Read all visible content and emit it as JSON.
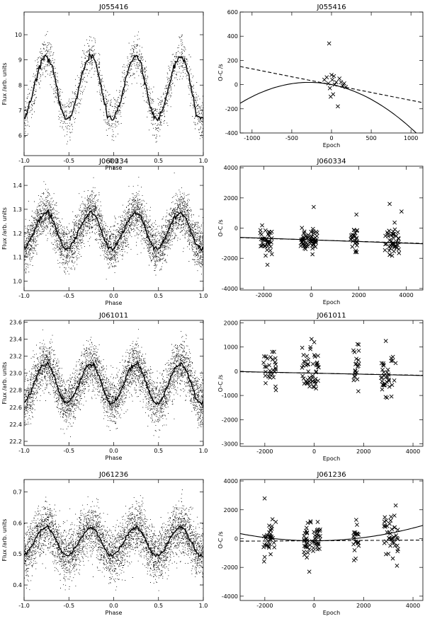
{
  "chart_data": [
    {
      "type": "scatter",
      "title": "J055416",
      "xlabel": "Phase",
      "ylabel": "Flux /arb. units",
      "xlim": [
        -1.0,
        1.0
      ],
      "ylim": [
        5.2,
        10.9
      ],
      "xticks": [
        -1.0,
        -0.5,
        0.0,
        0.5,
        1.0
      ],
      "xticklabels": [
        "-1.0",
        "-0.5",
        "0.0",
        "0.5",
        "1.0"
      ],
      "yticks": [
        6,
        7,
        8,
        9,
        10
      ],
      "yticklabels": [
        "6",
        "7",
        "8",
        "9",
        "10"
      ],
      "curve": {
        "mean": 7.9,
        "amplitude": 1.25,
        "period": 0.5,
        "peak_phase": -0.25,
        "shape": "sawtooth-rounded"
      },
      "scatter": {
        "n_points": 1800,
        "spread": 0.75
      }
    },
    {
      "type": "scatter",
      "title": "J055416",
      "xlabel": "Epoch",
      "ylabel": "O-C /s",
      "xlim": [
        -1150,
        1150
      ],
      "ylim": [
        -400,
        600
      ],
      "xticks": [
        -1000,
        -500,
        0,
        500,
        1000
      ],
      "xticklabels": [
        "-1000",
        "-500",
        "0",
        "500",
        "1000"
      ],
      "yticks": [
        -400,
        -200,
        0,
        200,
        400,
        600
      ],
      "yticklabels": [
        "-400",
        "-200",
        "0",
        "200",
        "400",
        "600"
      ],
      "points": [
        [
          -30,
          340
        ],
        [
          -90,
          40
        ],
        [
          -60,
          60
        ],
        [
          -40,
          10
        ],
        [
          -20,
          -30
        ],
        [
          0,
          80
        ],
        [
          10,
          40
        ],
        [
          30,
          70
        ],
        [
          60,
          20
        ],
        [
          -10,
          -100
        ],
        [
          20,
          -80
        ],
        [
          40,
          0
        ],
        [
          80,
          -180
        ],
        [
          120,
          20
        ],
        [
          140,
          -10
        ],
        [
          160,
          10
        ],
        [
          180,
          -20
        ],
        [
          100,
          50
        ]
      ],
      "fits": [
        {
          "style": "dashed",
          "kind": "linear",
          "a": 0.0,
          "b": -0.13
        },
        {
          "style": "solid",
          "kind": "quadratic",
          "a": 0.0,
          "b": -0.13,
          "c": -0.00023
        }
      ]
    },
    {
      "type": "scatter",
      "title": "J060334",
      "xlabel": "Phase",
      "ylabel": "Flux /arb. units",
      "xlim": [
        -1.0,
        1.0
      ],
      "ylim": [
        0.96,
        1.48
      ],
      "xticks": [
        -1.0,
        -0.5,
        0.0,
        0.5,
        1.0
      ],
      "xticklabels": [
        "-1.0",
        "-0.5",
        "0.0",
        "0.5",
        "1.0"
      ],
      "yticks": [
        1.0,
        1.1,
        1.2,
        1.3,
        1.4
      ],
      "yticklabels": [
        "1.0",
        "1.1",
        "1.2",
        "1.3",
        "1.4"
      ],
      "curve": {
        "mean": 1.21,
        "amplitude": 0.075,
        "period": 0.5,
        "peak_phase": -0.25,
        "shape": "sawtooth-rounded"
      },
      "scatter": {
        "n_points": 4500,
        "spread": 0.085
      }
    },
    {
      "type": "scatter",
      "title": "J060334",
      "xlabel": "Epoch",
      "ylabel": "O-C /s",
      "xlim": [
        -3000,
        4700
      ],
      "ylim": [
        -4100,
        4100
      ],
      "xticks": [
        -2000,
        0,
        2000,
        4000
      ],
      "xticklabels": [
        "-2000",
        "0",
        "2000",
        "4000"
      ],
      "yticks": [
        -4000,
        -2000,
        0,
        2000,
        4000
      ],
      "yticklabels": [
        "-4000",
        "-2000",
        "0",
        "2000",
        "4000"
      ],
      "clusters": [
        {
          "center": -1900,
          "width": 500,
          "count": 40,
          "mean": -800,
          "sd": 450
        },
        {
          "center": -100,
          "width": 700,
          "count": 60,
          "mean": -800,
          "sd": 400
        },
        {
          "center": 1800,
          "width": 300,
          "count": 25,
          "mean": -700,
          "sd": 450
        },
        {
          "center": 3400,
          "width": 600,
          "count": 45,
          "mean": -850,
          "sd": 500
        }
      ],
      "outliers": [
        [
          100,
          1400
        ],
        [
          1900,
          900
        ],
        [
          3300,
          1600
        ],
        [
          3800,
          1100
        ]
      ],
      "fits": [
        {
          "style": "dashed",
          "kind": "linear",
          "a": -780,
          "b": -0.05
        },
        {
          "style": "solid",
          "kind": "linear",
          "a": -780,
          "b": -0.055
        }
      ]
    },
    {
      "type": "scatter",
      "title": "J061011",
      "xlabel": "Phase",
      "ylabel": "Flux /arb. units",
      "xlim": [
        -1.0,
        1.0
      ],
      "ylim": [
        22.15,
        23.62
      ],
      "xticks": [
        -1.0,
        -0.5,
        0.0,
        0.5,
        1.0
      ],
      "xticklabels": [
        "-1.0",
        "-0.5",
        "0.0",
        "0.5",
        "1.0"
      ],
      "yticks": [
        22.2,
        22.4,
        22.6,
        22.8,
        23.0,
        23.2,
        23.4,
        23.6
      ],
      "yticklabels": [
        "22.2",
        "22.4",
        "22.6",
        "22.8",
        "23.0",
        "23.2",
        "23.4",
        "23.6"
      ],
      "curve": {
        "mean": 22.88,
        "amplitude": 0.23,
        "period": 0.5,
        "peak_phase": -0.25,
        "shape": "sawtooth-rounded"
      },
      "scatter": {
        "n_points": 4500,
        "spread": 0.26
      }
    },
    {
      "type": "scatter",
      "title": "J061011",
      "xlabel": "Epoch",
      "ylabel": "O-C /s",
      "xlim": [
        -3000,
        4400
      ],
      "ylim": [
        -3100,
        2100
      ],
      "xticks": [
        -2000,
        0,
        2000,
        4000
      ],
      "xticklabels": [
        "-2000",
        "0",
        "2000",
        "4000"
      ],
      "yticks": [
        -3000,
        -2000,
        -1000,
        0,
        1000,
        2000
      ],
      "yticklabels": [
        "-3000",
        "-2000",
        "-1000",
        "0",
        "1000",
        "2000"
      ],
      "clusters": [
        {
          "center": -1800,
          "width": 500,
          "count": 30,
          "mean": -150,
          "sd": 500
        },
        {
          "center": -150,
          "width": 700,
          "count": 50,
          "mean": -100,
          "sd": 550
        },
        {
          "center": 1700,
          "width": 250,
          "count": 20,
          "mean": 0,
          "sd": 500
        },
        {
          "center": 3000,
          "width": 600,
          "count": 35,
          "mean": -150,
          "sd": 550
        }
      ],
      "outliers": [
        [
          0,
          1200
        ],
        [
          1800,
          1100
        ],
        [
          2900,
          1250
        ],
        [
          -1700,
          800
        ]
      ],
      "fits": [
        {
          "style": "dashed",
          "kind": "linear",
          "a": -80,
          "b": -0.02
        },
        {
          "style": "solid",
          "kind": "linear",
          "a": -80,
          "b": -0.022
        }
      ]
    },
    {
      "type": "scatter",
      "title": "J061236",
      "xlabel": "Phase",
      "ylabel": "Flux /arb. units",
      "xlim": [
        -1.0,
        1.0
      ],
      "ylim": [
        0.35,
        0.74
      ],
      "xticks": [
        -1.0,
        -0.5,
        0.0,
        0.5,
        1.0
      ],
      "xticklabels": [
        "-1.0",
        "-0.5",
        "0.0",
        "0.5",
        "1.0"
      ],
      "yticks": [
        0.4,
        0.5,
        0.6,
        0.7
      ],
      "yticklabels": [
        "0.4",
        "0.5",
        "0.6",
        "0.7"
      ],
      "curve": {
        "mean": 0.54,
        "amplitude": 0.045,
        "period": 0.5,
        "peak_phase": -0.25,
        "shape": "sawtooth-rounded"
      },
      "scatter": {
        "n_points": 4500,
        "spread": 0.075
      }
    },
    {
      "type": "scatter",
      "title": "J061236",
      "xlabel": "Epoch",
      "ylabel": "O-C /s",
      "xlim": [
        -3000,
        4400
      ],
      "ylim": [
        -4300,
        4100
      ],
      "xticks": [
        -2000,
        0,
        2000,
        4000
      ],
      "xticklabels": [
        "-2000",
        "0",
        "2000",
        "4000"
      ],
      "yticks": [
        -4000,
        -2000,
        0,
        2000,
        4000
      ],
      "yticklabels": [
        "-4000",
        "-2000",
        "0",
        "2000",
        "4000"
      ],
      "clusters": [
        {
          "center": -1800,
          "width": 500,
          "count": 35,
          "mean": 0,
          "sd": 750
        },
        {
          "center": -100,
          "width": 700,
          "count": 55,
          "mean": -100,
          "sd": 600
        },
        {
          "center": 1700,
          "width": 250,
          "count": 20,
          "mean": 0,
          "sd": 600
        },
        {
          "center": 3100,
          "width": 600,
          "count": 40,
          "mean": 100,
          "sd": 800
        }
      ],
      "outliers": [
        [
          -200,
          -2300
        ],
        [
          3300,
          2300
        ],
        [
          1700,
          1300
        ]
      ],
      "fits": [
        {
          "style": "dashed",
          "kind": "linear",
          "a": -150,
          "b": 0.01
        },
        {
          "style": "solid",
          "kind": "quadratic",
          "a": -150,
          "b": 0.0,
          "c": 5.5e-05
        }
      ]
    }
  ]
}
